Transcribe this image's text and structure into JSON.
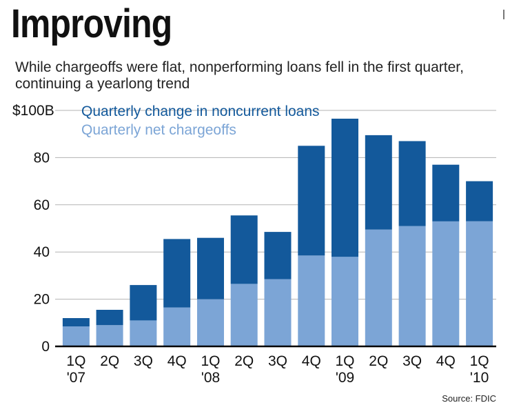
{
  "title": "Improving",
  "subtitle": "While chargeoffs were flat, nonperforming loans fell in the first quarter, continuing a yearlong trend",
  "source": "Source: FDIC",
  "colors": {
    "noncurrent": "#13599b",
    "chargeoffs": "#7ca5d6",
    "grid": "#b3b3b3",
    "axis": "#000000"
  },
  "chart_data": {
    "type": "bar",
    "stacked": true,
    "title": "Improving",
    "categories": [
      "1Q '07",
      "2Q",
      "3Q",
      "4Q",
      "1Q '08",
      "2Q",
      "3Q",
      "4Q",
      "1Q '09",
      "2Q",
      "3Q",
      "4Q",
      "1Q '10"
    ],
    "tick_labels": [
      {
        "quarter": "1Q",
        "year": "'07"
      },
      {
        "quarter": "2Q",
        "year": ""
      },
      {
        "quarter": "3Q",
        "year": ""
      },
      {
        "quarter": "4Q",
        "year": ""
      },
      {
        "quarter": "1Q",
        "year": "'08"
      },
      {
        "quarter": "2Q",
        "year": ""
      },
      {
        "quarter": "3Q",
        "year": ""
      },
      {
        "quarter": "4Q",
        "year": ""
      },
      {
        "quarter": "1Q",
        "year": "'09"
      },
      {
        "quarter": "2Q",
        "year": ""
      },
      {
        "quarter": "3Q",
        "year": ""
      },
      {
        "quarter": "4Q",
        "year": ""
      },
      {
        "quarter": "1Q",
        "year": "'10"
      }
    ],
    "series": [
      {
        "name": "Quarterly net chargeoffs",
        "color": "#7ca5d6",
        "values": [
          8.5,
          9,
          11,
          16.5,
          20,
          26.5,
          28.5,
          38.5,
          38,
          49.5,
          51,
          53,
          53
        ]
      },
      {
        "name": "Quarterly change in noncurrent loans",
        "color": "#13599b",
        "values": [
          3.5,
          6.5,
          15,
          29,
          26,
          29,
          20,
          46.5,
          58.5,
          40,
          36,
          24,
          17
        ]
      }
    ],
    "y_ticks": [
      0,
      20,
      40,
      60,
      80
    ],
    "y_top_label": "$100B",
    "ylim": [
      0,
      100
    ],
    "xlabel": "",
    "ylabel": "",
    "grid": true,
    "legend": [
      {
        "label": "Quarterly change in noncurrent loans",
        "color": "#13599b"
      },
      {
        "label": "Quarterly net chargeoffs",
        "color": "#7ca5d6"
      }
    ],
    "legend_position": "top-left"
  }
}
